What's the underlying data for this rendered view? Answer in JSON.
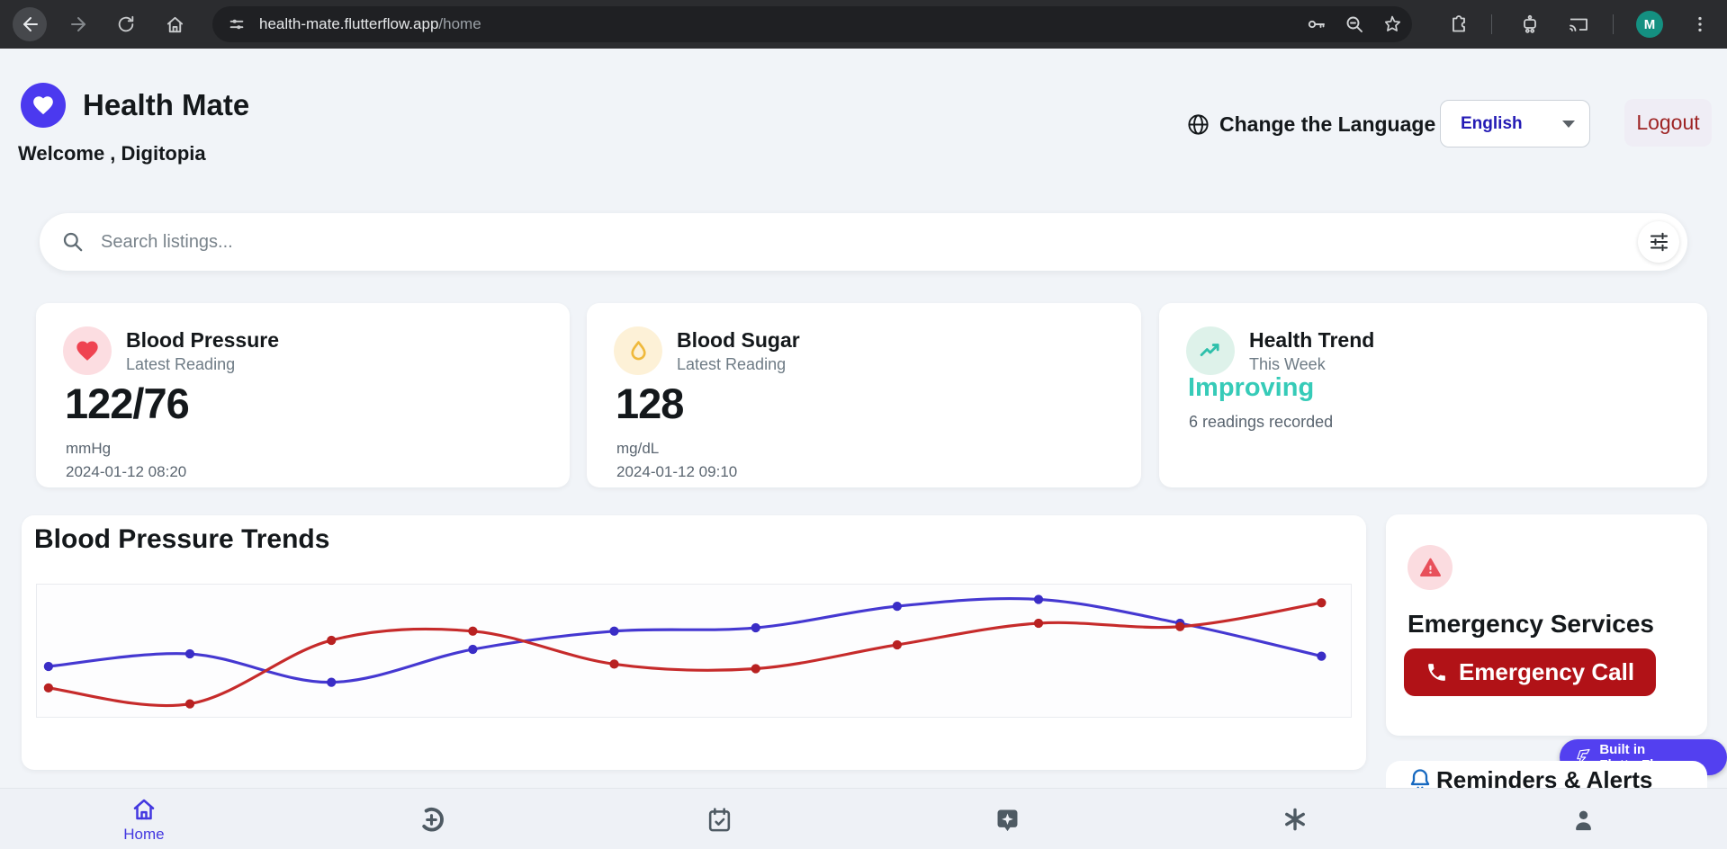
{
  "browser": {
    "url_domain": "health-mate.flutterflow.app",
    "url_path": "/home",
    "avatar_letter": "M",
    "icons": [
      "back-icon",
      "forward-icon",
      "reload-icon",
      "home-icon",
      "site-settings-icon",
      "key-icon",
      "zoom-minus-icon",
      "bookmark-star-icon",
      "extensions-icon",
      "bot-icon",
      "cast-icon",
      "avatar",
      "menu-dots-icon"
    ]
  },
  "header": {
    "app_name": "Health Mate",
    "welcome": "Welcome , Digitopia",
    "language_icon": "globe-icon",
    "language_label": "Change the Language",
    "language_value": "English",
    "logout_label": "Logout"
  },
  "search": {
    "placeholder": "Search listings...",
    "icon": "search-icon",
    "filter_icon": "filter-sliders-icon"
  },
  "stats": [
    {
      "icon": "heart-icon",
      "title": "Blood Pressure",
      "subtitle": "Latest Reading",
      "value": "122/76",
      "unit": "mmHg",
      "timestamp": "2024-01-12 08:20",
      "icon_color": "#ef4351",
      "icon_bg": "#fcdde1",
      "value_color": "#14181b"
    },
    {
      "icon": "droplet-icon",
      "title": "Blood Sugar",
      "subtitle": "Latest Reading",
      "value": "128",
      "unit": "mg/dL",
      "timestamp": "2024-01-12 09:10",
      "icon_color": "#efb93c",
      "icon_bg": "#fdf1d7",
      "value_color": "#14181b"
    },
    {
      "icon": "trending-up-icon",
      "title": "Health Trend",
      "subtitle": "This Week",
      "value": "Improving",
      "unit": "6 readings recorded",
      "timestamp": "",
      "icon_color": "#2ec0ab",
      "icon_bg": "#def2ea",
      "value_color": "#36cbb8"
    }
  ],
  "chart_section": {
    "title": "Blood Pressure Trends"
  },
  "chart_data": {
    "type": "line",
    "title": "Blood Pressure Trends",
    "x": [
      1,
      2,
      3,
      4,
      5,
      6,
      7,
      8,
      9,
      10
    ],
    "xlabel": "",
    "ylabel": "",
    "ylim": [
      0,
      100
    ],
    "grid": false,
    "legend": false,
    "series": [
      {
        "name": "blue-line",
        "color": "#4538d1",
        "marker_color": "#3a2dc6",
        "values": [
          35,
          46,
          21,
          50,
          66,
          69,
          88,
          94,
          73,
          44
        ]
      },
      {
        "name": "red-line",
        "color": "#c62b2b",
        "marker_color": "#b82121",
        "values": [
          16,
          2,
          58,
          66,
          37,
          33,
          54,
          73,
          70,
          91
        ]
      }
    ]
  },
  "emergency": {
    "icon": "warning-icon",
    "title": "Emergency Services",
    "button_icon": "phone-icon",
    "button_label": "Emergency Call",
    "button_color": "#b11217"
  },
  "flutterflow_badge": {
    "icon": "flutterflow-logo-icon",
    "label": "Built in FlutterFlow",
    "color": "#5340f0"
  },
  "reminders": {
    "icon": "bell-icon",
    "title": "Reminders & Alerts"
  },
  "bottom_nav": {
    "items": [
      {
        "icon": "home-icon",
        "label": "Home",
        "active": true
      },
      {
        "icon": "health-services-icon",
        "label": "",
        "active": false
      },
      {
        "icon": "calendar-check-icon",
        "label": "",
        "active": false
      },
      {
        "icon": "ai-assistant-icon",
        "label": "",
        "active": false
      },
      {
        "icon": "asterisk-icon",
        "label": "",
        "active": false
      },
      {
        "icon": "profile-icon",
        "label": "",
        "active": false
      }
    ]
  },
  "colors": {
    "primary": "#4b39ef",
    "page_bg": "#f1f4f8",
    "improving": "#36cbb8",
    "emergency_button": "#b11217",
    "logout_text": "#9e2424",
    "language_value_text": "#241bb5",
    "chart_blue": "#4538d1",
    "chart_red": "#c62b2b"
  }
}
